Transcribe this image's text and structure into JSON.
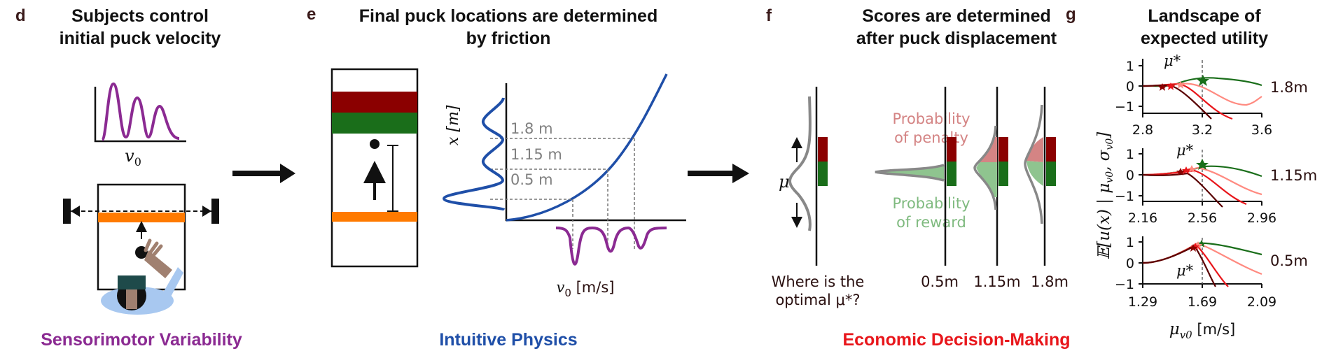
{
  "panels": {
    "d": {
      "letter": "d",
      "title_line1": "Subjects control",
      "title_line2": "initial puck velocity",
      "v_label": "v",
      "v_sub": "0",
      "footer": "Sensorimotor Variability",
      "footer_color": "#8b2a92"
    },
    "e": {
      "letter": "e",
      "title_line1": "Final puck locations are determined",
      "title_line2": "by friction",
      "y_axis_label": "x [m]",
      "x_axis_label_v": "v",
      "x_axis_label_sub": "0",
      "x_axis_label_unit": " [m/s]",
      "distances": [
        "1.8 m",
        "1.15 m",
        "0.5 m"
      ],
      "footer": "Intuitive Physics",
      "footer_color": "#1f4fa8"
    },
    "f": {
      "letter": "f",
      "title_line1": "Scores are determined",
      "title_line2": "after puck displacement",
      "mu_label": "μ",
      "penalty_line1": "Probability",
      "penalty_line2": "of penalty",
      "reward_line1": "Probability",
      "reward_line2": "of reward",
      "question_line1": "Where is the",
      "question_line2": "optimal μ*?",
      "distance_labels": [
        "0.5m",
        "1.15m",
        "1.8m"
      ],
      "footer": "Economic Decision-Making",
      "footer_color": "#e8161b"
    },
    "g": {
      "letter": "g",
      "title_line1": "Landscape of",
      "title_line2": "expected utility",
      "y_label": "E[u(x) | μv0, σv0]",
      "x_label": "μv0 [m/s]",
      "mu_star": "μ*",
      "subplots": [
        {
          "label": "1.8m",
          "xticks": [
            "2.8",
            "3.2",
            "3.6"
          ],
          "yticks": [
            "1",
            "0",
            "−1"
          ]
        },
        {
          "label": "1.15m",
          "xticks": [
            "2.16",
            "2.56",
            "2.96"
          ],
          "yticks": [
            "1",
            "0",
            "−1"
          ]
        },
        {
          "label": "0.5m",
          "xticks": [
            "1.29",
            "1.69",
            "2.09"
          ],
          "yticks": [
            "1",
            "0",
            "−1"
          ]
        }
      ]
    }
  },
  "colors": {
    "purple": "#8b2a92",
    "blue": "#1f4fa8",
    "dark_red": "#8b0000",
    "green": "#1a6e1a",
    "orange": "#ff7a00",
    "light_red": "#f08080"
  }
}
